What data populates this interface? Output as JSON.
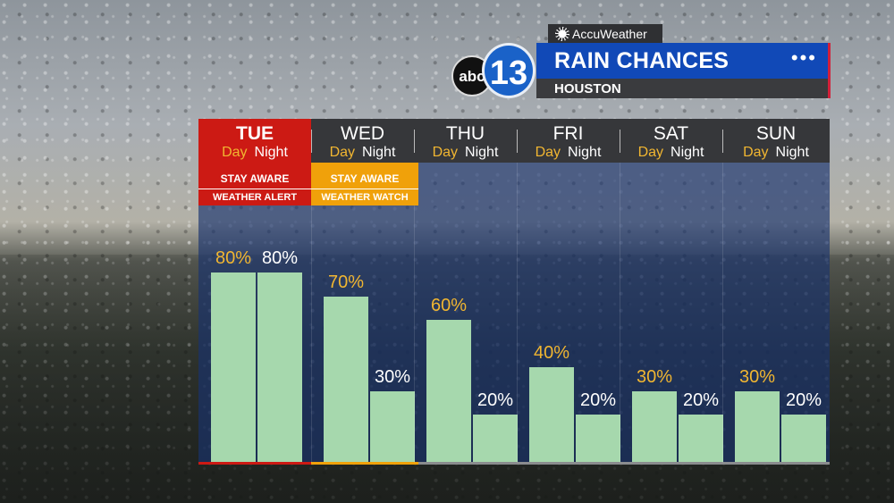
{
  "header": {
    "provider": "AccuWeather",
    "logo_abc": "abc",
    "logo_number": "13",
    "title": "RAIN CHANCES",
    "location": "HOUSTON",
    "menu_dots": "•••"
  },
  "colors": {
    "bar": "#a6d8ad",
    "day_text": "#f1b631",
    "alert_red": "#cc1a14",
    "alert_orange": "#f0a10a",
    "title_blue": "#1149b7"
  },
  "icons": [
    "sun-icon",
    "menu-dots-icon"
  ],
  "chart_data": {
    "type": "bar",
    "title": "RAIN CHANCES",
    "subtitle": "HOUSTON",
    "unit": "%",
    "ylim": [
      0,
      100
    ],
    "categories": [
      "TUE",
      "WED",
      "THU",
      "FRI",
      "SAT",
      "SUN"
    ],
    "sublabels": {
      "day": "Day",
      "night": "Night"
    },
    "series": [
      {
        "name": "Day",
        "values": [
          80,
          70,
          60,
          40,
          30,
          30
        ]
      },
      {
        "name": "Night",
        "values": [
          80,
          30,
          20,
          20,
          20,
          20
        ]
      }
    ],
    "labels": {
      "day": [
        "80%",
        "70%",
        "60%",
        "40%",
        "30%",
        "30%"
      ],
      "night": [
        "80%",
        "30%",
        "20%",
        "20%",
        "20%",
        "20%"
      ]
    },
    "alerts": [
      {
        "day": "TUE",
        "line1": "STAY AWARE",
        "line2": "WEATHER ALERT",
        "color": "red"
      },
      {
        "day": "WED",
        "line1": "STAY AWARE",
        "line2": "WEATHER WATCH",
        "color": "orange"
      }
    ]
  }
}
